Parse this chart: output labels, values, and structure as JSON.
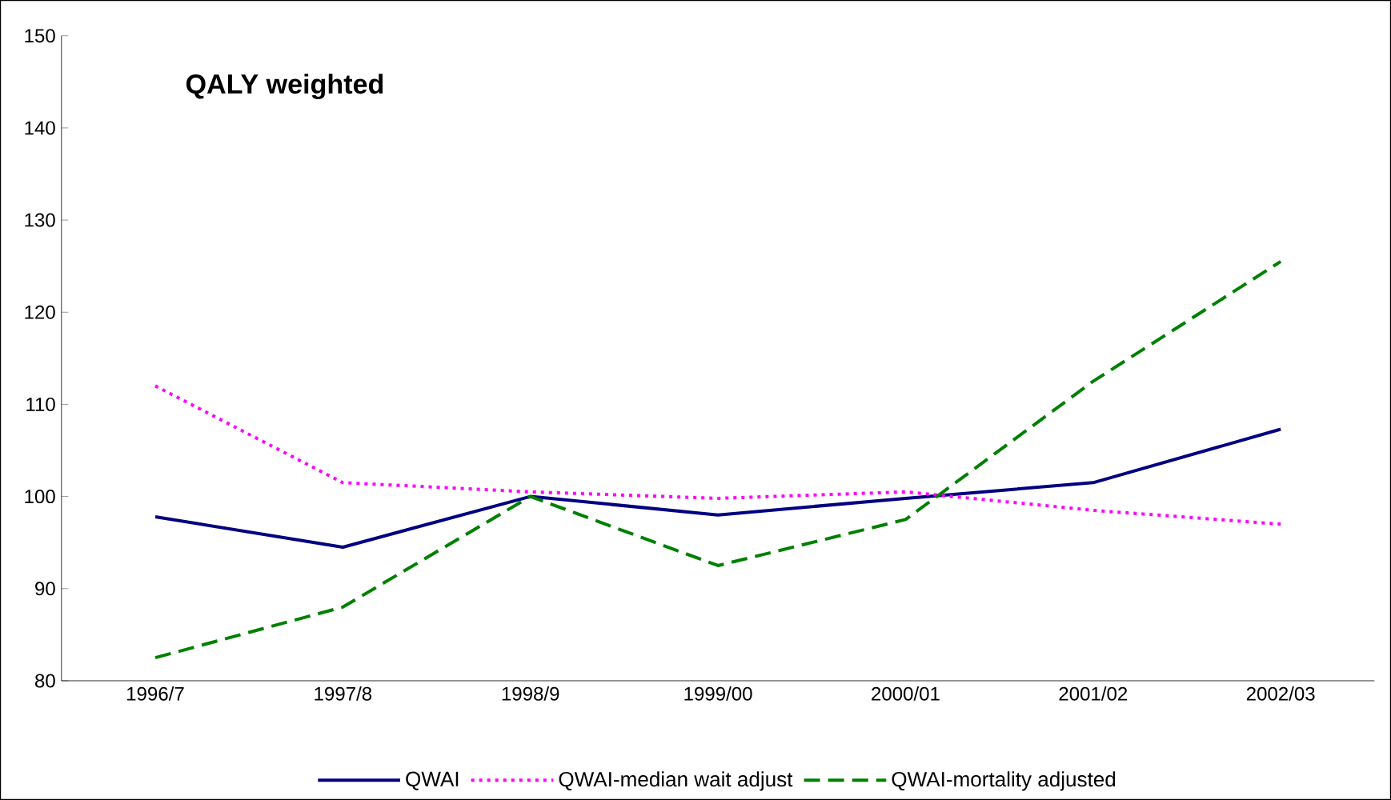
{
  "chart_data": {
    "type": "line",
    "title": "QALY weighted",
    "categories": [
      "1996/7",
      "1997/8",
      "1998/9",
      "1999/00",
      "2000/01",
      "2001/02",
      "2002/03"
    ],
    "series": [
      {
        "name": "QWAI",
        "color": "#000080",
        "line_style": "solid",
        "values": [
          97.8,
          94.5,
          100,
          98,
          99.8,
          101.5,
          107.3
        ]
      },
      {
        "name": "QWAI-median wait adjust",
        "color": "#ff00ff",
        "line_style": "dotted",
        "values": [
          112,
          101.5,
          100.5,
          99.8,
          100.5,
          98.5,
          97
        ]
      },
      {
        "name": "QWAI-mortality adjusted",
        "color": "#008000",
        "line_style": "dashed",
        "values": [
          82.5,
          88,
          100,
          92.5,
          97.5,
          112.5,
          125.5
        ]
      }
    ],
    "ylim": [
      80,
      150
    ],
    "yticks": [
      80,
      90,
      100,
      110,
      120,
      130,
      140,
      150
    ],
    "legend": "bottom",
    "marker": "none"
  }
}
